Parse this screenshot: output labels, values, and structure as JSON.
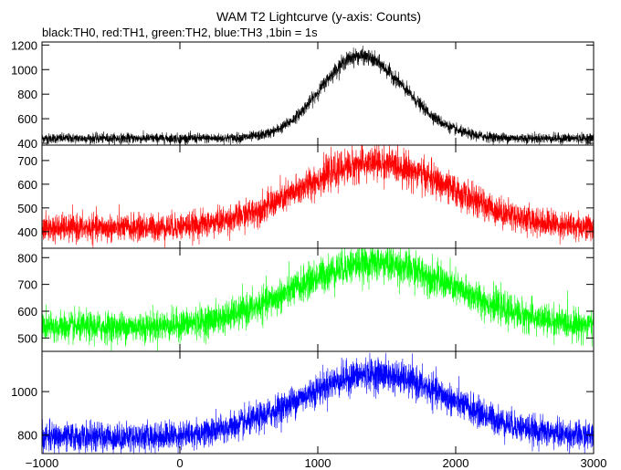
{
  "chart_data": {
    "type": "line",
    "title": "WAM T2 Lightcurve (y-axis: Counts)",
    "subtitle": "black:TH0, red:TH1, green:TH2, blue:TH3 ,1bin = 1s",
    "xlabel": "",
    "ylabel": "",
    "xlim": [
      -1000,
      3000
    ],
    "x_ticks": [
      "−1000",
      "0",
      "1000",
      "2000",
      "3000"
    ],
    "x_tick_values": [
      -1000,
      0,
      1000,
      2000,
      3000
    ],
    "grid": false,
    "legend": "none (series described in subtitle)",
    "panels": [
      {
        "series_name": "TH0",
        "color": "#000000",
        "ylim": [
          385,
          1225
        ],
        "y_ticks": [
          400,
          600,
          800,
          1000,
          1200
        ],
        "baseline": 440,
        "peak_x": 1300,
        "peak_mean": 1110,
        "rise_sigma": 280,
        "decay_sigma": 330,
        "noise_amp": 20,
        "x": [
          -1000,
          -500,
          0,
          500,
          800,
          1000,
          1100,
          1200,
          1300,
          1400,
          1500,
          1700,
          2000,
          2500,
          3000
        ],
        "y": [
          440,
          440,
          442,
          450,
          520,
          760,
          960,
          1080,
          1120,
          1090,
          990,
          780,
          550,
          445,
          440
        ]
      },
      {
        "series_name": "TH1",
        "color": "#ff0000",
        "ylim": [
          330,
          765
        ],
        "y_ticks": [
          400,
          500,
          600,
          700
        ],
        "baseline": 415,
        "peak_x": 1400,
        "peak_mean": 690,
        "rise_sigma": 520,
        "decay_sigma": 560,
        "noise_amp": 28,
        "x": [
          -1000,
          -500,
          0,
          500,
          800,
          1000,
          1200,
          1400,
          1600,
          1800,
          2000,
          2500,
          3000
        ],
        "y": [
          420,
          420,
          425,
          460,
          530,
          590,
          650,
          690,
          660,
          600,
          530,
          440,
          410
        ]
      },
      {
        "series_name": "TH2",
        "color": "#00ff00",
        "ylim": [
          450,
          835
        ],
        "y_ticks": [
          500,
          600,
          700,
          800
        ],
        "baseline": 540,
        "peak_x": 1400,
        "peak_mean": 780,
        "rise_sigma": 560,
        "decay_sigma": 600,
        "noise_amp": 28,
        "x": [
          -1000,
          -500,
          0,
          500,
          800,
          1000,
          1200,
          1400,
          1600,
          1800,
          2000,
          2500,
          3000
        ],
        "y": [
          540,
          545,
          550,
          585,
          650,
          710,
          760,
          780,
          760,
          710,
          650,
          570,
          545
        ]
      },
      {
        "series_name": "TH3",
        "color": "#0000ff",
        "ylim": [
          715,
          1185
        ],
        "y_ticks": [
          800,
          1000
        ],
        "baseline": 790,
        "peak_x": 1400,
        "peak_mean": 1080,
        "rise_sigma": 540,
        "decay_sigma": 560,
        "noise_amp": 32,
        "x": [
          -1000,
          -500,
          0,
          500,
          800,
          1000,
          1200,
          1400,
          1600,
          1800,
          2000,
          2500,
          3000
        ],
        "y": [
          790,
          790,
          795,
          830,
          900,
          980,
          1050,
          1080,
          1050,
          980,
          900,
          800,
          780
        ]
      }
    ]
  }
}
